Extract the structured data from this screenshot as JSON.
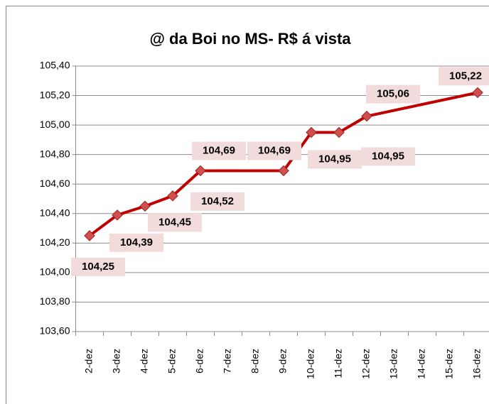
{
  "chart_data": {
    "type": "line",
    "title": "@ da Boi no MS- R$ á vista",
    "categories": [
      "2-dez",
      "3-dez",
      "4-dez",
      "5-dez",
      "6-dez",
      "7-dez",
      "8-dez",
      "9-dez",
      "10-dez",
      "11-dez",
      "12-dez",
      "13-dez",
      "14-dez",
      "15-dez",
      "16-dez"
    ],
    "series": [
      {
        "name": "@ da Boi no MS- R$ á vista",
        "color": "#c00000",
        "values": [
          104.25,
          104.39,
          104.45,
          104.52,
          104.69,
          null,
          null,
          104.69,
          104.95,
          104.95,
          105.06,
          null,
          null,
          null,
          105.22
        ],
        "value_labels": [
          "104,25",
          "104,39",
          "104,45",
          "104,52",
          "104,69",
          null,
          null,
          "104,69",
          "104,95",
          "104,95",
          "105,06",
          null,
          null,
          null,
          "105,22"
        ]
      }
    ],
    "ylim": [
      103.6,
      105.4
    ],
    "yticks": [
      {
        "value": 103.6,
        "label": "103,60"
      },
      {
        "value": 103.8,
        "label": "103,80"
      },
      {
        "value": 104.0,
        "label": "104,00"
      },
      {
        "value": 104.2,
        "label": "104,20"
      },
      {
        "value": 104.4,
        "label": "104,40"
      },
      {
        "value": 104.6,
        "label": "104,60"
      },
      {
        "value": 104.8,
        "label": "104,80"
      },
      {
        "value": 105.0,
        "label": "105,00"
      },
      {
        "value": 105.2,
        "label": "105,20"
      },
      {
        "value": 105.4,
        "label": "105,40"
      }
    ],
    "grid": true
  }
}
